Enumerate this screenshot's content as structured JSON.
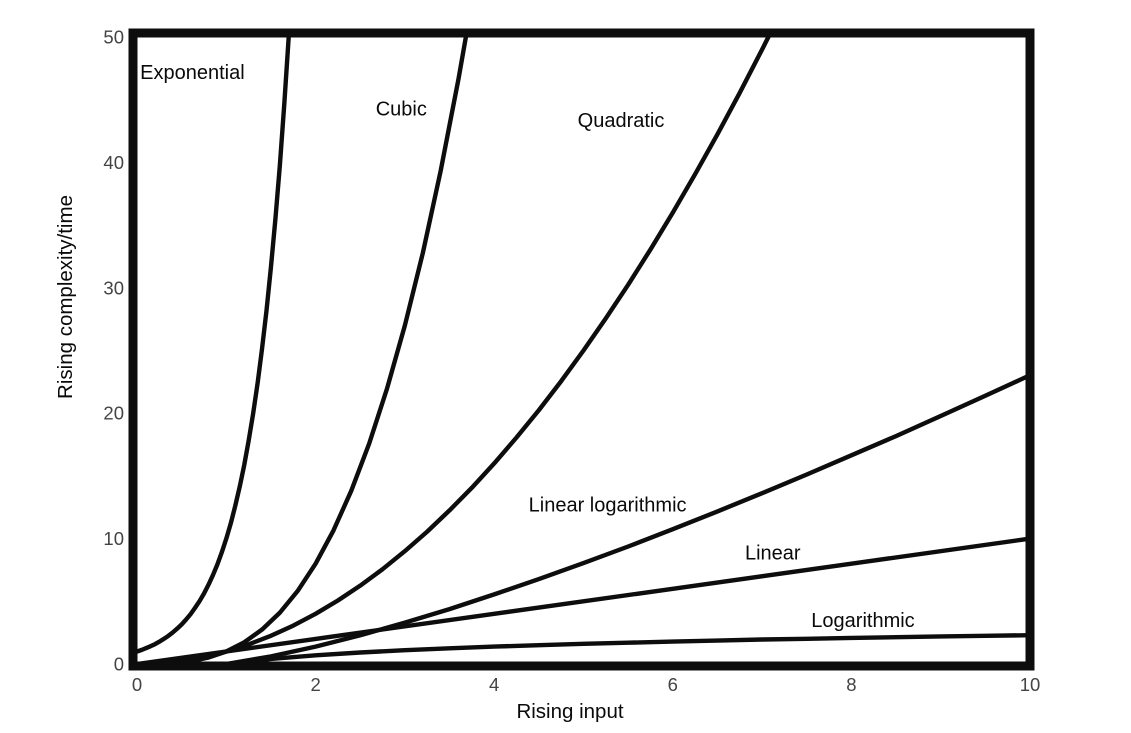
{
  "chart_data": {
    "type": "line",
    "title": "",
    "xlabel": "Rising input",
    "ylabel": "Rising complexity/time",
    "xlim": [
      0,
      10
    ],
    "ylim": [
      0,
      50
    ],
    "xticks": [
      0,
      2,
      4,
      6,
      8,
      10
    ],
    "yticks": [
      0,
      10,
      20,
      30,
      40,
      50
    ],
    "grid": false,
    "legend_position": "none",
    "colors": {
      "curve": "#0d0d0d",
      "border": "#0d0d0d",
      "tick_label": "#444444",
      "axis_label": "#0a0a0a",
      "annotation": "#0a0a0a",
      "background": "#ffffff"
    },
    "series": [
      {
        "name": "Exponential",
        "points": [
          [
            0,
            1
          ],
          [
            0.05,
            1.12
          ],
          [
            0.1,
            1.26
          ],
          [
            0.15,
            1.41
          ],
          [
            0.2,
            1.58
          ],
          [
            0.25,
            1.78
          ],
          [
            0.3,
            2
          ],
          [
            0.35,
            2.24
          ],
          [
            0.4,
            2.51
          ],
          [
            0.45,
            2.82
          ],
          [
            0.5,
            3.16
          ],
          [
            0.55,
            3.55
          ],
          [
            0.6,
            3.98
          ],
          [
            0.65,
            4.47
          ],
          [
            0.7,
            5.01
          ],
          [
            0.75,
            5.62
          ],
          [
            0.8,
            6.31
          ],
          [
            0.85,
            7.08
          ],
          [
            0.9,
            7.94
          ],
          [
            0.95,
            8.91
          ],
          [
            1,
            10
          ],
          [
            1.05,
            11.22
          ],
          [
            1.1,
            12.59
          ],
          [
            1.15,
            14.13
          ],
          [
            1.2,
            15.85
          ],
          [
            1.25,
            17.78
          ],
          [
            1.3,
            19.95
          ],
          [
            1.35,
            22.39
          ],
          [
            1.4,
            25.12
          ],
          [
            1.45,
            28.18
          ],
          [
            1.5,
            31.62
          ],
          [
            1.55,
            35.48
          ],
          [
            1.6,
            39.81
          ],
          [
            1.65,
            44.67
          ],
          [
            1.7,
            50.12
          ],
          [
            1.73,
            53
          ]
        ]
      },
      {
        "name": "Cubic",
        "points": [
          [
            0,
            0
          ],
          [
            0.2,
            0.01
          ],
          [
            0.4,
            0.06
          ],
          [
            0.6,
            0.22
          ],
          [
            0.8,
            0.51
          ],
          [
            1,
            1
          ],
          [
            1.2,
            1.73
          ],
          [
            1.4,
            2.74
          ],
          [
            1.6,
            4.1
          ],
          [
            1.8,
            5.83
          ],
          [
            2,
            8
          ],
          [
            2.2,
            10.65
          ],
          [
            2.4,
            13.82
          ],
          [
            2.6,
            17.58
          ],
          [
            2.8,
            21.95
          ],
          [
            3,
            27
          ],
          [
            3.2,
            32.77
          ],
          [
            3.4,
            39.3
          ],
          [
            3.6,
            46.66
          ],
          [
            3.75,
            52.73
          ]
        ]
      },
      {
        "name": "Quadratic",
        "points": [
          [
            0,
            0
          ],
          [
            0.25,
            0.06
          ],
          [
            0.5,
            0.25
          ],
          [
            0.75,
            0.56
          ],
          [
            1,
            1
          ],
          [
            1.25,
            1.56
          ],
          [
            1.5,
            2.25
          ],
          [
            1.75,
            3.06
          ],
          [
            2,
            4
          ],
          [
            2.25,
            5.06
          ],
          [
            2.5,
            6.25
          ],
          [
            2.75,
            7.56
          ],
          [
            3,
            9
          ],
          [
            3.25,
            10.56
          ],
          [
            3.5,
            12.25
          ],
          [
            3.75,
            14.06
          ],
          [
            4,
            16
          ],
          [
            4.25,
            18.06
          ],
          [
            4.5,
            20.25
          ],
          [
            4.75,
            22.56
          ],
          [
            5,
            25
          ],
          [
            5.25,
            27.56
          ],
          [
            5.5,
            30.25
          ],
          [
            5.75,
            33.06
          ],
          [
            6,
            36
          ],
          [
            6.25,
            39.06
          ],
          [
            6.5,
            42.25
          ],
          [
            6.75,
            45.56
          ],
          [
            7,
            49
          ],
          [
            7.2,
            51.84
          ]
        ]
      },
      {
        "name": "Linear logarithmic",
        "points": [
          [
            0,
            0
          ],
          [
            0.5,
            0
          ],
          [
            1,
            0
          ],
          [
            1.5,
            0.61
          ],
          [
            2,
            1.39
          ],
          [
            2.5,
            2.29
          ],
          [
            3,
            3.3
          ],
          [
            3.5,
            4.38
          ],
          [
            4,
            5.55
          ],
          [
            4.5,
            6.77
          ],
          [
            5,
            8.05
          ],
          [
            5.5,
            9.37
          ],
          [
            6,
            10.75
          ],
          [
            6.5,
            12.17
          ],
          [
            7,
            13.62
          ],
          [
            7.5,
            15.11
          ],
          [
            8,
            16.64
          ],
          [
            8.5,
            18.17
          ],
          [
            9,
            19.78
          ],
          [
            9.5,
            21.39
          ],
          [
            10,
            23.03
          ]
        ]
      },
      {
        "name": "Linear",
        "points": [
          [
            0,
            0
          ],
          [
            2,
            2
          ],
          [
            4,
            4
          ],
          [
            6,
            6
          ],
          [
            8,
            8
          ],
          [
            10,
            10
          ]
        ]
      },
      {
        "name": "Logarithmic",
        "points": [
          [
            1,
            0
          ],
          [
            1.5,
            0.41
          ],
          [
            2,
            0.69
          ],
          [
            2.5,
            0.92
          ],
          [
            3,
            1.1
          ],
          [
            3.5,
            1.25
          ],
          [
            4,
            1.39
          ],
          [
            4.5,
            1.5
          ],
          [
            5,
            1.61
          ],
          [
            5.5,
            1.7
          ],
          [
            6,
            1.79
          ],
          [
            6.5,
            1.87
          ],
          [
            7,
            1.95
          ],
          [
            7.5,
            2.01
          ],
          [
            8,
            2.08
          ],
          [
            8.5,
            2.14
          ],
          [
            9,
            2.2
          ],
          [
            9.5,
            2.25
          ],
          [
            10,
            2.3
          ]
        ]
      }
    ],
    "annotations": [
      {
        "text": "Exponential",
        "x": 0.62,
        "y": 47.2
      },
      {
        "text": "Cubic",
        "x": 2.96,
        "y": 44.3
      },
      {
        "text": "Quadratic",
        "x": 5.42,
        "y": 43.4
      },
      {
        "text": "Linear logarithmic",
        "x": 5.27,
        "y": 12.7
      },
      {
        "text": "Linear",
        "x": 7.12,
        "y": 8.9
      },
      {
        "text": "Logarithmic",
        "x": 8.13,
        "y": 3.5
      }
    ]
  }
}
